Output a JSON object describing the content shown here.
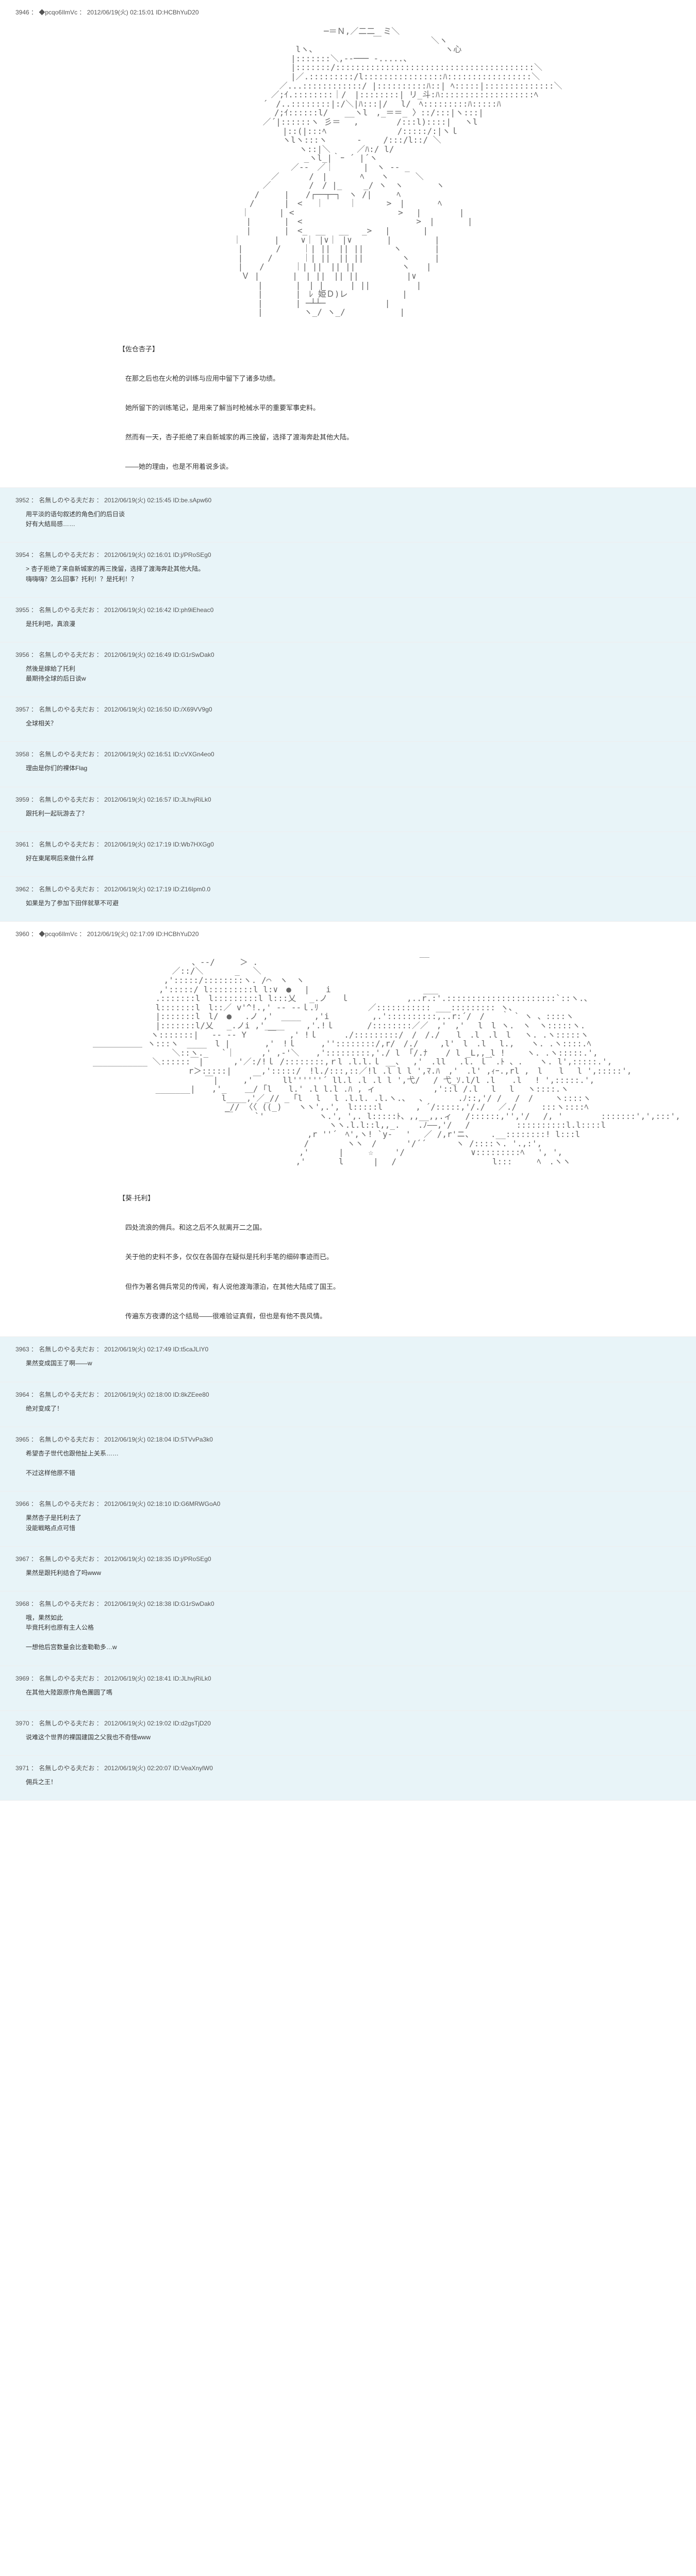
{
  "posts": [
    {
      "type": "main",
      "no": "3946",
      "name": "◆pcqo6IlmVc",
      "date": "2012/06/19(火) 02:15:01",
      "id": "ID:HCBhYuD20",
      "aa": "　　　　　　　　　　　　　　　　　　　　　　　　　　　　─＝Ｎ,／二二　ミ＼\n　　　　　　　　　　　　　　　　　　　　　　　　　　　　　　　　　　￣　　　　　　＼ヽ\n　　　　　　　　　　　　　　　　　　　　　　　　 lヽ、　　　　　　　　　　　　　　　　ヽ心\n　　　　　　　　　　　　　　　　　　　　　　　　|:::::::＼,-‐─── -.....、\n　　　　　　　　　　　　　　　　　　　　　　　　|:::::::/::::::::::::::::::::::::::::::::::::::::＼\n　　　　　　　　　　　　　　　　　　　　　　　　|／.:::::::::/l::::::::::::::::ﾊ:::::::::::::::::＼\n　　　　　　　　　　　　　　　　　　　　　　 ／...::::::::::::/ |::::::::::ﾊ::| ﾍ:::::|::::::::::::::＼\n　　　　　　　　　　　　　　　　　　　　　 ／;ｲ.::::::::｜/　|::::::::| リ_斗:ﾊ:::::::::::::::::::ﾍ\n　　　　　　　　　　　　　　　　　　　　 ´　/..::::::::|:/＼|ﾊ:::|/ 　l/　ﾍ:::::::::ﾊ:::::ﾊ\n　　　　　　　　　　　　　　　　　　　　　　/;ｲ::::::l/　　__ヽl　,_＝＝_ 〉::/:::|ヽ:::|\n　　　　　　　　　　　　　　　　　　　　 ／´|::::::ヽ 彡＝ 　,　　　　 /:::l)::::|　 ヽl\n　　　　　　　　　　　　　　　　　　　　　　　|::(|:::ﾍ　　　　　　　　 /:::::/:|ヽｌ\n　　　　　　　　　　　　　　　　　　　　　　　ヽlヽ:::ヽ　　　 -　　 /:::/l::/ ＼\n　　　　　　　　　　　　　　　　　　　　　　　　　ヽ::|＼　 　 ／ﾊ:/ l/\n　　　　　　　　　　　　　　　　　　　　　　　　　 _ヽl_|｀ｰ ´ |´ヽ\n　　　　　　　　　　　　　　　　　　　　　　　　／-‐　／｜　　　 |　ヽ ‐- _\n　　　　　　　　　　　　　　　　　　　　　 ／　　　 /　|　　　　ﾍ　　ヽ　 　 ＼\n　　　　　　　　　　　　　　　　　　　　 ／　　　　 /　/ |_　 　_/ ヽ　ヽ　　　　ヽ\n　　　　　　　　　　　　　　　　　　　 /　　　|　　/┌──┬─┐　ヽ /|　　　ﾍ\n　　　　　　　　　　　　　　　　　　　/　　　 |　<　 ｜　　　｜　　　 >　|　　　　ﾍ\n　　　　　　　　　　　　　　　　　　｜　　　 | <　　 　　　　　　　　　　>　 |　　　　 |\n　　　　　　　　　　　　　　　　　　 |　　　　|　<　 　　　　　 　 　　　　　>　|　　　　|\n　　　　　　　　　　　　　　　　　　 |　　　　|　<_　__　 __　 _> 　|　　　　|\n　　　　　　　　　　　　　　　　　｜　　　　|　　 ∨｜ |∨｜ |∨　　 　 |　 　　　 |\n　　　　　　　　　　　　　　　　　 |　　　　/　　 ｜| ||　|| ||　　　 ヽ　　　　|\n　　　　　　　　　　　　　　　　　 |　　　/　　　 ｜| ||　|| ||　　　　 ヽ　　　|\n　　　　　　　　　　　　　　　　　 |　　/　　　 ｜| ||　|| ||　 　　　　ヽ　　|\n　　　　　　　　　　　　　　　　　　Ｖ |　　　　|　| ||　|| ||　　 　 　 |∨\n　　　　　　　　　　　　　　　　　　　　|　　　　|　| |　 　 | ||　　　　　 |\n　　　　　　　　　　　　　　　　　　　　|　　　　|　ﾚ 姫Ｄ)レ　　　 　　　|\n　　　　　　　　　　　　　　　　　　　　|　　　　| ─┴┴─　　　　 　 　|\n　　　　　　　　　　　　　　　　　　　　|　　　　　ヽ_/ ヽ_/　　　　　　 |",
      "body": [
        "",
        "【佐仓杏子】",
        "",
        "　在那之后也在火枪的训练与应用中留下了诸多功绩。",
        "",
        "　她所留下的训练笔记，是用来了解当时枪械水平的重要军事史料。",
        "",
        "　然而有一天，杏子拒绝了来自新城家的再三挽留，选择了渡海奔赴其他大陆。",
        "",
        "　――她的理由，也是不用着说多谈。"
      ]
    },
    {
      "type": "reply",
      "no": "3952",
      "name": "名無しのやる夫だお",
      "date": "2012/06/19(火) 02:15:45",
      "id": "ID:be.sApw60",
      "body": [
        "用平淡的语句叙述的角色们的后日谈",
        "好有大結局感……"
      ]
    },
    {
      "type": "reply",
      "no": "3954",
      "name": "名無しのやる夫だお",
      "date": "2012/06/19(火) 02:16:01",
      "id": "ID:j/PRoSEg0",
      "body": [
        "> 杏子拒绝了来自新城家的再三挽留，选择了渡海奔赴其他大陆。",
        "嗨嗨嗨？怎么回事？托利！？是托利！？"
      ]
    },
    {
      "type": "reply",
      "no": "3955",
      "name": "名無しのやる夫だお",
      "date": "2012/06/19(火) 02:16:42",
      "id": "ID:ph9iEheac0",
      "body": [
        "是托利吧，真浪漫"
      ]
    },
    {
      "type": "reply",
      "no": "3956",
      "name": "名無しのやる夫だお",
      "date": "2012/06/19(火) 02:16:49",
      "id": "ID:G1rSwDak0",
      "body": [
        "然後是嫁給了托利",
        "最期待全球的后日谈w"
      ]
    },
    {
      "type": "reply",
      "no": "3957",
      "name": "名無しのやる夫だお",
      "date": "2012/06/19(火) 02:16:50",
      "id": "ID:/X69VV9g0",
      "body": [
        "全球相关？"
      ]
    },
    {
      "type": "reply",
      "no": "3958",
      "name": "名無しのやる夫だお",
      "date": "2012/06/19(火) 02:16:51",
      "id": "ID:cVXGn4eo0",
      "body": [
        "理由是你们的裸体Flag"
      ]
    },
    {
      "type": "reply",
      "no": "3959",
      "name": "名無しのやる夫だお",
      "date": "2012/06/19(火) 02:16:57",
      "id": "ID:JLhvjRiLk0",
      "body": [
        "跟托利一起玩游去了？"
      ]
    },
    {
      "type": "reply",
      "no": "3961",
      "name": "名無しのやる夫だお",
      "date": "2012/06/19(火) 02:17:19",
      "id": "ID:Wb7HXGg0",
      "body": [
        "好在東尾啊后来做什么样"
      ]
    },
    {
      "type": "reply",
      "no": "3962",
      "name": "名無しのやる夫だお",
      "date": "2012/06/19(火) 02:17:19",
      "id": "ID:Z16Ipm0.0",
      "body": [
        "如果是为了参加下田伴就草不可避"
      ]
    },
    {
      "type": "main",
      "no": "3960",
      "name": "◆pcqo6IlmVc",
      "date": "2012/06/19(火) 02:17:09",
      "id": "ID:HCBhYuD20",
      "aa": "　　　　　　　　　　　　　　　　　　　　　　　　　　　　　　　　　　　　　　　 __\n　　　　　　　　　　　　、‐‐/　　　＞ .\n　　　　　　　　　 ／::/＼ 　 　 _　 ＼\n　　　　　　　　 ,':::::/::::::::ヽ. /⌒　ヽ　ヽ\n　　　　　　　　,':::::/ l:::::::::l l:∨　●　 |　　i 　 　 　 　 　 　 　___\n　　　　　　　 .:::::::l　l:::::::::l l:::乂　 _.ノ　 ｌ　　　　　　　,..r.:'.::::::::::::::::::::::`::ヽ.、\n　　　　　　　 l:::::::l　l::／ v'^!.,' ‐- -‐ｌ.ﾘ　　　　　　／::::::::::: ___::::::::: ヽ、\n　　　　　　　 |:::::::l　l/　●　 .ノ ,'　____　 ,'i　　　 　 ,.'::::::::::,..r:´/　/　　｀ ` ヽ 、::::ヽ\n　　　　　　　 |:::::::l/乂　 _.ノi ,'____ 　　,'.!ｌ　　　　/::::::::／／　,'　,'　 l　l ヽ.　ヽ　ヽ:::::ヽ.\n　　　　　　　ヽ:::::::|　 ‐- -‐ Y　　 ￣　 ,' !ｌ 　 　./:::::::::/　/　/./　　l　.l　.l　l　 ヽ. .ヽ:::::ヽ\n＿＿＿＿＿＿ ヽ:::ヽ　____　l |　　 　 ,'　!ｌ　　　,''::::::::/,r/　/./　 　,l'　l　.l　 l.,　　ヽ. .ヽ::::.ﾍ\n　　　　　　　　　 ＼::ヽ._　 `｜ 　 　,' ,-'＼　　,':::::::::,'./ l 「/.ﾅ 　 / l _L,,_l !　　 ヽ. .ヽ:::::.',\n___________ ＼::::::￣|　　　 ,'／:/!ｌ /::::::::,ｒl .l.l.ｌ __、　 ,'　.ll 　.l. ｌ｀.ﾄ 、.　　ヽ. l',:::::.',\n　　　　　　　　　　　 r＞:::::|　　　 ,':::::/　!l./:::,::／!l .l l l ',ﾏ.ﾊ　,'　.l' ,ｨｰ.,rl ,　l　　l 　l ',:::::',\n　　　　　　　　　　　　　 ￣|　　　,'￣　　 ll''''''´ ll.l .l .l l ',弋/　 / 弋_ｿ.l/l .l　　.l 　! ',:::::.',\n　　　　　　　 _______|　　,'_ 　 ＿/ ｢l　　l.' .l l.l .ﾊ , ィ　　　　　　　,'::l /.l　 l　 l 　ヽ::::.ヽ\n　　　　　　　　　　　　　　　 l____,'／_// _「l　 l　 l .l.l. .l.ヽ.、　 、　　 　 .ﾉ::,'/ /　 /　/　　 ヽ::::ヽ\n　　　　　　　　　　　　　　　　_// 〈〈 ((_)　　ヽヽ',.',　l:::::l　　　　, ´/:::::,'/./　 ／./　　　:::ヽ::::ﾍ\n　　　　　　　　　　　　　　　　￣　　 `'　　　　　　 ヽ.', ',. l:::::ﾄ、,,__,,.ィ 　/::::::,'','/　 /, '　　　　 :::::::',',:::',\n　　　　　　　　　　　　　　　　　　　　　　　　　　　　 ヽヽ.l.l::l,,_. 　 .ﾉ――,'/　 /　　　　　 ::::::::::l.l::::l\n　　　　　　　　　　　　　　　　　　　　　　　　　　,r ''´　ﾍ',ヽ! `y-　 '　 ／ /,r'ニ、　　 .__::::::::! l:::l\n　　　　　　　　　　　　　　　　　　　　　　　　　 /　　　　 ヽヽ　/　　　 '/´´　　　 ヽ /::::ヽ. '.,:',\n　　　　　　　　　　　　　　　　　　　　　　　　　,'　　　 |　　　☆ 　　'/　　　　　　　　∨:::::::::ﾍ　 ', ',\n　　　　　　　　　　　　　　　　　　　　　　　　 ,'　　　　l　　　 |　 /　　　 　 　 　 　 　 l:::　　　ﾍ　.ヽヽ",
      "body": [
        "",
        "【葵·托利】",
        "",
        "　四处流浪的佣兵。和这之后不久就离开二之国。",
        "",
        "　关于他的史料不多，仅仅在各国存在疑似是托利手笔的细碎事迹而已。",
        "",
        "　但作为著名佣兵常见的传闻，有人说他渡海漂泊，在其他大陆成了国王。",
        "",
        "　传遍东方夜谭的这个结局――很难验证真假，但也是有他不畏风情。"
      ]
    },
    {
      "type": "reply",
      "no": "3963",
      "name": "名無しのやる夫だお",
      "date": "2012/06/19(火) 02:17:49",
      "id": "ID:t5caJLIY0",
      "body": [
        "果然变成国王了啊――w"
      ]
    },
    {
      "type": "reply",
      "no": "3964",
      "name": "名無しのやる夫だお",
      "date": "2012/06/19(火) 02:18:00",
      "id": "ID:8kZEee80",
      "body": [
        "绝对变成了！"
      ]
    },
    {
      "type": "reply",
      "no": "3965",
      "name": "名無しのやる夫だお",
      "date": "2012/06/19(火) 02:18:04",
      "id": "ID:5TVvPa3k0",
      "body": [
        "希望杏子世代也跟他扯上关系……",
        "",
        "不过这样他原不错"
      ]
    },
    {
      "type": "reply",
      "no": "3966",
      "name": "名無しのやる夫だお",
      "date": "2012/06/19(火) 02:18:10",
      "id": "ID:G6MRWGoA0",
      "body": [
        "果然杏子是托利去了",
        "没能戦略点点可惜"
      ]
    },
    {
      "type": "reply",
      "no": "3967",
      "name": "名無しのやる夫だお",
      "date": "2012/06/19(火) 02:18:35",
      "id": "ID:j/PRoSEg0",
      "body": [
        "果然是跟托利结合了吗www"
      ]
    },
    {
      "type": "reply",
      "no": "3968",
      "name": "名無しのやる夫だお",
      "date": "2012/06/19(火) 02:18:38",
      "id": "ID:G1rSwDak0",
      "body": [
        "哦，果然如此",
        "毕竟托利也原有主人公格",
        "",
        "一想他后宫数量会比查勒勒多…w"
      ]
    },
    {
      "type": "reply",
      "no": "3969",
      "name": "名無しのやる夫だお",
      "date": "2012/06/19(火) 02:18:41",
      "id": "ID:JLhvjRiLk0",
      "body": [
        "在其他大陸跟原作角色團圆了嗎"
      ]
    },
    {
      "type": "reply",
      "no": "3970",
      "name": "名無しのやる夫だお",
      "date": "2012/06/19(火) 02:19:02",
      "id": "ID:d2gsTjD20",
      "body": [
        "说难这个世界的裸国建国之父我也不奇怪www"
      ]
    },
    {
      "type": "reply",
      "no": "3971",
      "name": "名無しのやる夫だお",
      "date": "2012/06/19(火) 02:20:07",
      "id": "ID:VeaXnylW0",
      "body": [
        "佣兵之王！"
      ]
    }
  ]
}
